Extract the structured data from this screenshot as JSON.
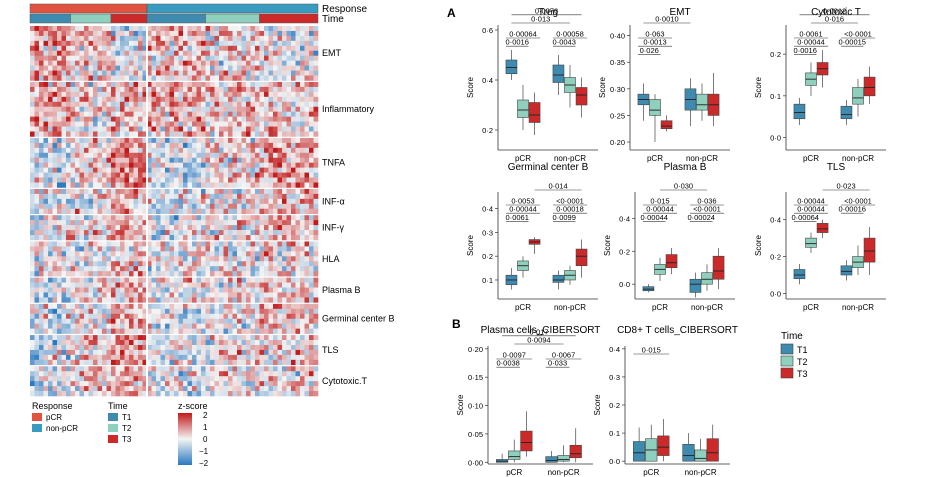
{
  "colors": {
    "pCR": "#e0533f",
    "non_pCR": "#3a9bc0",
    "T1": "#3f8bb0",
    "T2": "#8fcfbd",
    "T3": "#cc2a2a",
    "heat_high": "#c21a1a",
    "heat_mid": "#f4f4f4",
    "heat_low": "#2a78c0"
  },
  "heatmap": {
    "annotation_labels": [
      "Response",
      "Time"
    ],
    "response_groups": [
      {
        "key": "pCR",
        "cols": 26
      },
      {
        "key": "non_pCR",
        "cols": 38
      }
    ],
    "time_groups": [
      {
        "key": "T1",
        "cols": 9
      },
      {
        "key": "T2",
        "cols": 9
      },
      {
        "key": "T3",
        "cols": 8
      },
      {
        "key": "T1",
        "cols": 13
      },
      {
        "key": "T2",
        "cols": 12
      },
      {
        "key": "T3",
        "cols": 13
      }
    ],
    "row_blocks": [
      {
        "label": "EMT",
        "rows": 11
      },
      {
        "label": "Inflammatory",
        "rows": 11
      },
      {
        "label": "TNFA",
        "rows": 10
      },
      {
        "label": "INF-α",
        "rows": 5
      },
      {
        "label": "INF-γ",
        "rows": 5
      },
      {
        "label": "HLA",
        "rows": 7
      },
      {
        "label": "Plasma B",
        "rows": 5
      },
      {
        "label": "Germinal center B",
        "rows": 6
      },
      {
        "label": "TLS",
        "rows": 6
      },
      {
        "label": "Cytotoxic.T",
        "rows": 6
      }
    ],
    "legends": {
      "response": {
        "title": "Response",
        "items": [
          {
            "label": "pCR",
            "color_key": "pCR"
          },
          {
            "label": "non-pCR",
            "color_key": "non_pCR"
          }
        ]
      },
      "time": {
        "title": "Time",
        "items": [
          {
            "label": "T1",
            "color_key": "T1"
          },
          {
            "label": "T2",
            "color_key": "T2"
          },
          {
            "label": "T3",
            "color_key": "T3"
          }
        ]
      },
      "zscore": {
        "title": "z-score",
        "ticks": [
          "2",
          "1",
          "0",
          "−1",
          "−2"
        ]
      }
    }
  },
  "panel_labels": {
    "A": "A",
    "B": "B"
  },
  "time_legend": {
    "title": "Time",
    "items": [
      "T1",
      "T2",
      "T3"
    ]
  },
  "chart_data": [
    {
      "type": "box",
      "title": "Treg",
      "ylabel": "Score",
      "ylim": [
        0.12,
        0.62
      ],
      "yticks": [
        0.2,
        0.4,
        0.6
      ],
      "ytick_labels": [
        "0·2",
        "0·4",
        "0·6"
      ],
      "categories": [
        "pCR",
        "non-pCR"
      ],
      "boxes": [
        [
          [
            0.4,
            0.425,
            0.45,
            0.48,
            0.52
          ],
          [
            0.2,
            0.25,
            0.28,
            0.32,
            0.38
          ],
          [
            0.18,
            0.23,
            0.26,
            0.31,
            0.35
          ]
        ],
        [
          [
            0.34,
            0.39,
            0.42,
            0.46,
            0.5
          ],
          [
            0.29,
            0.35,
            0.38,
            0.41,
            0.46
          ],
          [
            0.25,
            0.3,
            0.34,
            0.37,
            0.41
          ]
        ]
      ],
      "brackets": [
        {
          "label": "0·0076",
          "from": [
            0,
            0
          ],
          "to": [
            1,
            2
          ]
        },
        {
          "label": "0·013",
          "from": [
            0,
            0
          ],
          "to": [
            1,
            1
          ]
        },
        {
          "label": "0·00064",
          "from": [
            0,
            0
          ],
          "to": [
            0,
            2
          ]
        },
        {
          "label": "0·0016",
          "from": [
            0,
            0
          ],
          "to": [
            0,
            1
          ]
        },
        {
          "label": "0·00058",
          "from": [
            1,
            0
          ],
          "to": [
            1,
            2
          ]
        },
        {
          "label": "0·0043",
          "from": [
            1,
            0
          ],
          "to": [
            1,
            1
          ]
        }
      ]
    },
    {
      "type": "box",
      "title": "EMT",
      "ylabel": "Score",
      "ylim": [
        0.185,
        0.42
      ],
      "yticks": [
        0.2,
        0.25,
        0.3,
        0.35,
        0.4
      ],
      "ytick_labels": [
        "0·20",
        "0·25",
        "0·30",
        "0·35",
        "0·40"
      ],
      "categories": [
        "pCR",
        "non-pCR"
      ],
      "boxes": [
        [
          [
            0.24,
            0.27,
            0.28,
            0.29,
            0.31
          ],
          [
            0.2,
            0.25,
            0.26,
            0.28,
            0.29
          ],
          [
            0.22,
            0.225,
            0.23,
            0.24,
            0.25
          ]
        ],
        [
          [
            0.23,
            0.26,
            0.28,
            0.3,
            0.32
          ],
          [
            0.24,
            0.26,
            0.27,
            0.29,
            0.31
          ],
          [
            0.23,
            0.25,
            0.27,
            0.29,
            0.33
          ]
        ]
      ],
      "brackets": [
        {
          "label": "0·0010",
          "from": [
            0,
            0
          ],
          "to": [
            1,
            0
          ]
        },
        {
          "label": "0·063",
          "from": [
            0,
            0
          ],
          "to": [
            0,
            2
          ]
        },
        {
          "label": "0·0013",
          "from": [
            0,
            0
          ],
          "to": [
            0,
            2
          ]
        },
        {
          "label": "0·026",
          "from": [
            0,
            0
          ],
          "to": [
            0,
            1
          ]
        }
      ]
    },
    {
      "type": "box",
      "title": "Cytotoxic T",
      "ylabel": "Score",
      "ylim": [
        -0.03,
        0.27
      ],
      "yticks": [
        0.0,
        0.1,
        0.2
      ],
      "ytick_labels": [
        "0·0",
        "0·1",
        "0·2"
      ],
      "categories": [
        "pCR",
        "non-pCR"
      ],
      "boxes": [
        [
          [
            0.03,
            0.045,
            0.06,
            0.08,
            0.095
          ],
          [
            0.1,
            0.125,
            0.14,
            0.155,
            0.18
          ],
          [
            0.12,
            0.15,
            0.165,
            0.18,
            0.21
          ]
        ],
        [
          [
            0.03,
            0.045,
            0.055,
            0.075,
            0.09
          ],
          [
            0.05,
            0.08,
            0.095,
            0.12,
            0.14
          ],
          [
            0.08,
            0.1,
            0.12,
            0.145,
            0.17
          ]
        ]
      ],
      "brackets": [
        {
          "label": "0·0012",
          "from": [
            0,
            0
          ],
          "to": [
            1,
            2
          ]
        },
        {
          "label": "0·016",
          "from": [
            0,
            1
          ],
          "to": [
            1,
            1
          ]
        },
        {
          "label": "0·0061",
          "from": [
            0,
            0
          ],
          "to": [
            0,
            2
          ]
        },
        {
          "label": "0·00044",
          "from": [
            0,
            0
          ],
          "to": [
            0,
            2
          ]
        },
        {
          "label": "0·0016",
          "from": [
            0,
            0
          ],
          "to": [
            0,
            1
          ]
        },
        {
          "label": "<0·0001",
          "from": [
            1,
            0
          ],
          "to": [
            1,
            2
          ]
        },
        {
          "label": "0·00015",
          "from": [
            1,
            0
          ],
          "to": [
            1,
            1
          ]
        }
      ]
    },
    {
      "type": "box",
      "title": "Germinal center B",
      "ylabel": "Score",
      "ylim": [
        0.02,
        0.47
      ],
      "yticks": [
        0.1,
        0.2,
        0.3,
        0.4
      ],
      "ytick_labels": [
        "0·1",
        "0·2",
        "0·3",
        "0·4"
      ],
      "categories": [
        "pCR",
        "non-pCR"
      ],
      "boxes": [
        [
          [
            0.06,
            0.08,
            0.1,
            0.12,
            0.15
          ],
          [
            0.11,
            0.14,
            0.16,
            0.18,
            0.2
          ],
          [
            0.21,
            0.25,
            0.26,
            0.27,
            0.28
          ]
        ],
        [
          [
            0.06,
            0.09,
            0.1,
            0.12,
            0.14
          ],
          [
            0.08,
            0.1,
            0.12,
            0.14,
            0.16
          ],
          [
            0.11,
            0.16,
            0.2,
            0.23,
            0.27
          ]
        ]
      ],
      "brackets": [
        {
          "label": "0·014",
          "from": [
            0,
            2
          ],
          "to": [
            1,
            2
          ]
        },
        {
          "label": "0·0053",
          "from": [
            0,
            0
          ],
          "to": [
            0,
            2
          ]
        },
        {
          "label": "0·00044",
          "from": [
            0,
            0
          ],
          "to": [
            0,
            2
          ]
        },
        {
          "label": "0·0061",
          "from": [
            0,
            0
          ],
          "to": [
            0,
            1
          ]
        },
        {
          "label": "<0·0001",
          "from": [
            1,
            0
          ],
          "to": [
            1,
            2
          ]
        },
        {
          "label": "0·00018",
          "from": [
            1,
            0
          ],
          "to": [
            1,
            2
          ]
        },
        {
          "label": "0·0099",
          "from": [
            1,
            0
          ],
          "to": [
            1,
            1
          ]
        }
      ]
    },
    {
      "type": "box",
      "title": "Plasma B",
      "ylabel": "Score",
      "ylim": [
        -0.09,
        0.56
      ],
      "yticks": [
        0.0,
        0.2,
        0.4
      ],
      "ytick_labels": [
        "0·0",
        "0·2",
        "0·4"
      ],
      "categories": [
        "pCR",
        "non-pCR"
      ],
      "boxes": [
        [
          [
            -0.05,
            -0.04,
            -0.03,
            -0.015,
            0.0
          ],
          [
            0.02,
            0.06,
            0.09,
            0.12,
            0.16
          ],
          [
            0.06,
            0.1,
            0.13,
            0.18,
            0.22
          ]
        ],
        [
          [
            -0.08,
            -0.05,
            0.0,
            0.03,
            0.07
          ],
          [
            -0.04,
            0.0,
            0.03,
            0.07,
            0.12
          ],
          [
            -0.03,
            0.03,
            0.08,
            0.17,
            0.22
          ]
        ]
      ],
      "brackets": [
        {
          "label": "0·030",
          "from": [
            0,
            1
          ],
          "to": [
            1,
            1
          ]
        },
        {
          "label": "0·015",
          "from": [
            0,
            0
          ],
          "to": [
            0,
            2
          ]
        },
        {
          "label": "0·00044",
          "from": [
            0,
            0
          ],
          "to": [
            0,
            2
          ]
        },
        {
          "label": "0·00044",
          "from": [
            0,
            0
          ],
          "to": [
            0,
            1
          ]
        },
        {
          "label": "0·036",
          "from": [
            1,
            0
          ],
          "to": [
            1,
            2
          ]
        },
        {
          "label": "<0·0001",
          "from": [
            1,
            0
          ],
          "to": [
            1,
            2
          ]
        },
        {
          "label": "0·00024",
          "from": [
            1,
            0
          ],
          "to": [
            1,
            1
          ]
        }
      ]
    },
    {
      "type": "box",
      "title": "TLS",
      "ylabel": "Score",
      "ylim": [
        -0.03,
        0.55
      ],
      "yticks": [
        0.0,
        0.2,
        0.4
      ],
      "ytick_labels": [
        "0·0",
        "0·2",
        "0·4"
      ],
      "categories": [
        "pCR",
        "non-pCR"
      ],
      "boxes": [
        [
          [
            0.05,
            0.08,
            0.1,
            0.13,
            0.16
          ],
          [
            0.22,
            0.25,
            0.27,
            0.3,
            0.33
          ],
          [
            0.3,
            0.33,
            0.35,
            0.38,
            0.4
          ]
        ],
        [
          [
            0.07,
            0.1,
            0.12,
            0.15,
            0.18
          ],
          [
            0.1,
            0.14,
            0.17,
            0.2,
            0.26
          ],
          [
            0.1,
            0.17,
            0.23,
            0.3,
            0.36
          ]
        ]
      ],
      "brackets": [
        {
          "label": "0·023",
          "from": [
            0,
            2
          ],
          "to": [
            1,
            2
          ]
        },
        {
          "label": "0·00044",
          "from": [
            0,
            0
          ],
          "to": [
            0,
            2
          ]
        },
        {
          "label": "0·00044",
          "from": [
            0,
            0
          ],
          "to": [
            0,
            2
          ]
        },
        {
          "label": "0·00064",
          "from": [
            0,
            0
          ],
          "to": [
            0,
            1
          ]
        },
        {
          "label": "<0·0001",
          "from": [
            1,
            0
          ],
          "to": [
            1,
            2
          ]
        },
        {
          "label": "0·00016",
          "from": [
            1,
            0
          ],
          "to": [
            1,
            1
          ]
        }
      ]
    },
    {
      "type": "box",
      "title": "Plasma cells_CIBERSORT",
      "ylabel": "Score",
      "ylim": [
        -0.003,
        0.205
      ],
      "yticks": [
        0.0,
        0.05,
        0.1,
        0.15,
        0.2
      ],
      "ytick_labels": [
        "0·00",
        "0·05",
        "0·10",
        "0·15",
        "0·20"
      ],
      "categories": [
        "pCR",
        "non-pCR"
      ],
      "boxes": [
        [
          [
            0.0,
            0.0,
            0.002,
            0.005,
            0.015
          ],
          [
            0.0,
            0.005,
            0.01,
            0.02,
            0.04
          ],
          [
            0.01,
            0.02,
            0.035,
            0.055,
            0.09
          ]
        ],
        [
          [
            0.0,
            0.0,
            0.003,
            0.01,
            0.02
          ],
          [
            0.0,
            0.002,
            0.005,
            0.012,
            0.03
          ],
          [
            0.0,
            0.008,
            0.015,
            0.03,
            0.06
          ]
        ]
      ],
      "brackets": [
        {
          "label": "0·017",
          "from": [
            0,
            0
          ],
          "to": [
            1,
            2
          ]
        },
        {
          "label": "0·0094",
          "from": [
            0,
            1
          ],
          "to": [
            1,
            1
          ]
        },
        {
          "label": "0·0097",
          "from": [
            0,
            0
          ],
          "to": [
            0,
            2
          ]
        },
        {
          "label": "0·0038",
          "from": [
            0,
            0
          ],
          "to": [
            0,
            1
          ]
        },
        {
          "label": "0·0067",
          "from": [
            1,
            0
          ],
          "to": [
            1,
            2
          ]
        },
        {
          "label": "0·033",
          "from": [
            1,
            0
          ],
          "to": [
            1,
            1
          ]
        }
      ]
    },
    {
      "type": "box",
      "title": "CD8+ T cells_CIBERSORT",
      "ylabel": "Score",
      "ylim": [
        -0.01,
        0.41
      ],
      "yticks": [
        0.0,
        0.1,
        0.2,
        0.3,
        0.4
      ],
      "ytick_labels": [
        "0·0",
        "0·1",
        "0·2",
        "0·3",
        "0·4"
      ],
      "categories": [
        "pCR",
        "non-pCR"
      ],
      "boxes": [
        [
          [
            0.0,
            0.0,
            0.03,
            0.07,
            0.12
          ],
          [
            0.0,
            0.0,
            0.04,
            0.08,
            0.13
          ],
          [
            0.0,
            0.02,
            0.05,
            0.09,
            0.15
          ]
        ],
        [
          [
            0.0,
            0.0,
            0.02,
            0.06,
            0.1
          ],
          [
            0.0,
            0.0,
            0.01,
            0.04,
            0.08
          ],
          [
            0.0,
            0.0,
            0.03,
            0.08,
            0.13
          ]
        ]
      ],
      "brackets": [
        {
          "label": "0·015",
          "from": [
            0,
            0
          ],
          "to": [
            0,
            2
          ]
        }
      ]
    }
  ]
}
